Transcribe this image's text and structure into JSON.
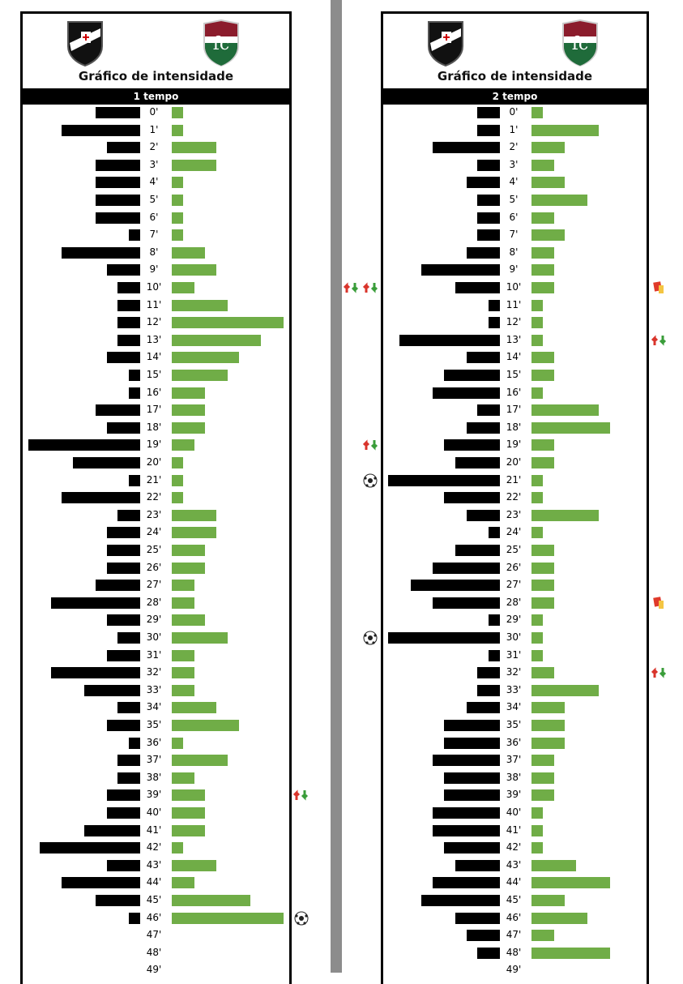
{
  "title": "Gráfico de intensidade",
  "teams": {
    "home": "Vasco da Gama",
    "away": "Fluminense"
  },
  "colors": {
    "home": "#000000",
    "away": "#70ad47"
  },
  "chart_data": [
    {
      "type": "bar",
      "title": "Gráfico de intensidade",
      "subtitle": "1 tempo",
      "categories": [
        "0'",
        "1'",
        "2'",
        "3'",
        "4'",
        "5'",
        "6'",
        "7'",
        "8'",
        "9'",
        "10'",
        "11'",
        "12'",
        "13'",
        "14'",
        "15'",
        "16'",
        "17'",
        "18'",
        "19'",
        "20'",
        "21'",
        "22'",
        "23'",
        "24'",
        "25'",
        "26'",
        "27'",
        "28'",
        "29'",
        "30'",
        "31'",
        "32'",
        "33'",
        "34'",
        "35'",
        "36'",
        "37'",
        "38'",
        "39'",
        "40'",
        "41'",
        "42'",
        "43'",
        "44'",
        "45'",
        "46'",
        "47'",
        "48'",
        "49'"
      ],
      "series": [
        {
          "name": "Vasco",
          "values": [
            4,
            7,
            3,
            4,
            4,
            4,
            4,
            1,
            7,
            3,
            2,
            2,
            2,
            2,
            3,
            1,
            1,
            4,
            3,
            10,
            6,
            1,
            7,
            2,
            3,
            3,
            3,
            4,
            8,
            3,
            2,
            3,
            8,
            5,
            2,
            3,
            1,
            2,
            2,
            3,
            3,
            5,
            9,
            3,
            7,
            4,
            1,
            0,
            0,
            0
          ]
        },
        {
          "name": "Fluminense",
          "values": [
            1,
            1,
            4,
            4,
            1,
            1,
            1,
            1,
            3,
            4,
            2,
            5,
            10,
            8,
            6,
            5,
            3,
            3,
            3,
            2,
            1,
            1,
            1,
            4,
            4,
            3,
            3,
            2,
            2,
            3,
            5,
            2,
            2,
            2,
            4,
            6,
            1,
            5,
            2,
            3,
            3,
            3,
            1,
            4,
            2,
            7,
            10,
            0,
            0,
            0
          ]
        }
      ],
      "events": [
        {
          "minute": 39,
          "team": "Fluminense",
          "type": "substitution"
        },
        {
          "minute": 46,
          "team": "Fluminense",
          "type": "goal"
        }
      ]
    },
    {
      "type": "bar",
      "title": "Gráfico de intensidade",
      "subtitle": "2 tempo",
      "categories": [
        "0'",
        "1'",
        "2'",
        "3'",
        "4'",
        "5'",
        "6'",
        "7'",
        "8'",
        "9'",
        "10'",
        "11'",
        "12'",
        "13'",
        "14'",
        "15'",
        "16'",
        "17'",
        "18'",
        "19'",
        "20'",
        "21'",
        "22'",
        "23'",
        "24'",
        "25'",
        "26'",
        "27'",
        "28'",
        "29'",
        "30'",
        "31'",
        "32'",
        "33'",
        "34'",
        "35'",
        "36'",
        "37'",
        "38'",
        "39'",
        "40'",
        "41'",
        "42'",
        "43'",
        "44'",
        "45'",
        "46'",
        "47'",
        "48'",
        "49'"
      ],
      "series": [
        {
          "name": "Vasco",
          "values": [
            2,
            2,
            6,
            2,
            3,
            2,
            2,
            2,
            3,
            7,
            4,
            1,
            1,
            9,
            3,
            5,
            6,
            2,
            3,
            5,
            4,
            10,
            5,
            3,
            1,
            4,
            6,
            8,
            6,
            1,
            10,
            1,
            2,
            2,
            3,
            5,
            5,
            6,
            5,
            5,
            6,
            6,
            5,
            4,
            6,
            7,
            4,
            3,
            2,
            0
          ]
        },
        {
          "name": "Fluminense",
          "values": [
            1,
            6,
            3,
            2,
            3,
            5,
            2,
            3,
            2,
            2,
            2,
            1,
            1,
            1,
            2,
            2,
            1,
            6,
            7,
            2,
            2,
            1,
            1,
            6,
            1,
            2,
            2,
            2,
            2,
            1,
            1,
            1,
            2,
            6,
            3,
            3,
            3,
            2,
            2,
            2,
            1,
            1,
            1,
            4,
            7,
            3,
            5,
            2,
            7,
            0
          ]
        }
      ],
      "events": [
        {
          "minute": 10,
          "team": "Vasco",
          "type": "substitution"
        },
        {
          "minute": 10,
          "team": "Vasco",
          "type": "substitution"
        },
        {
          "minute": 19,
          "team": "Vasco",
          "type": "substitution"
        },
        {
          "minute": 21,
          "team": "Vasco",
          "type": "goal"
        },
        {
          "minute": 30,
          "team": "Vasco",
          "type": "goal"
        },
        {
          "minute": 10,
          "team": "Fluminense",
          "type": "yellow-card"
        },
        {
          "minute": 13,
          "team": "Fluminense",
          "type": "substitution"
        },
        {
          "minute": 28,
          "team": "Fluminense",
          "type": "yellow-card"
        },
        {
          "minute": 32,
          "team": "Fluminense",
          "type": "substitution"
        }
      ]
    }
  ]
}
